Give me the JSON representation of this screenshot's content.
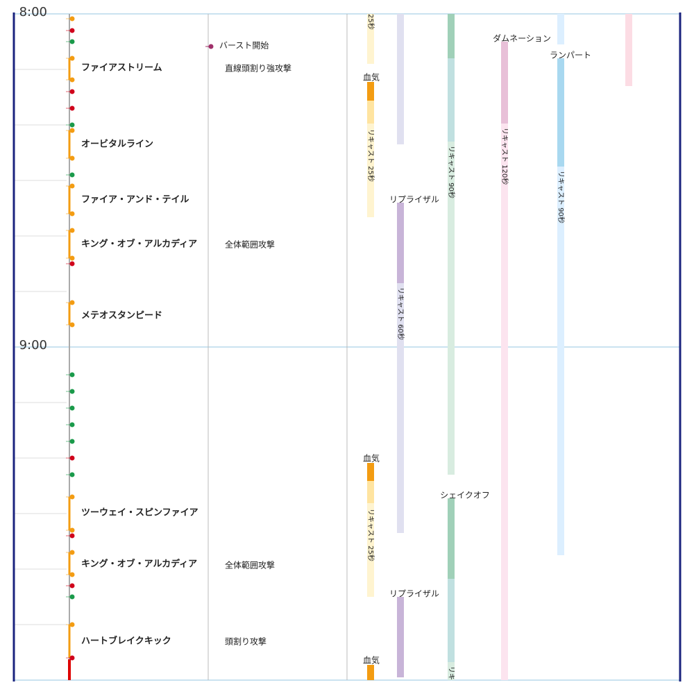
{
  "timeline": {
    "time_labels": [
      "8:00",
      "9:00"
    ],
    "actions": [
      "ファイアストリーム",
      "オービタルライン",
      "ファイア・アンド・テイル",
      "キング・オブ・アルカディア",
      "メテオスタンピード",
      "ツーウェイ・スピンファイア",
      "キング・オブ・アルカディア",
      "ハートブレイクキック"
    ],
    "mechanics": [
      "バースト開始",
      "直線頭割り強攻撃",
      "全体範囲攻撃",
      "全体範囲攻撃",
      "頭割り攻撃"
    ],
    "buffs": [
      "血気",
      "血気",
      "血気",
      "リプライザル",
      "リプライザル",
      "シェイクオフ",
      "ダムネーション",
      "ランパート"
    ],
    "recast_labels": [
      "25秒",
      "リキャスト 25秒",
      "リキャスト 25秒",
      "リキャスト 60秒",
      "リキャスト 90秒",
      "リキ",
      "リキャスト 120秒",
      "リキャスト 90秒"
    ]
  }
}
